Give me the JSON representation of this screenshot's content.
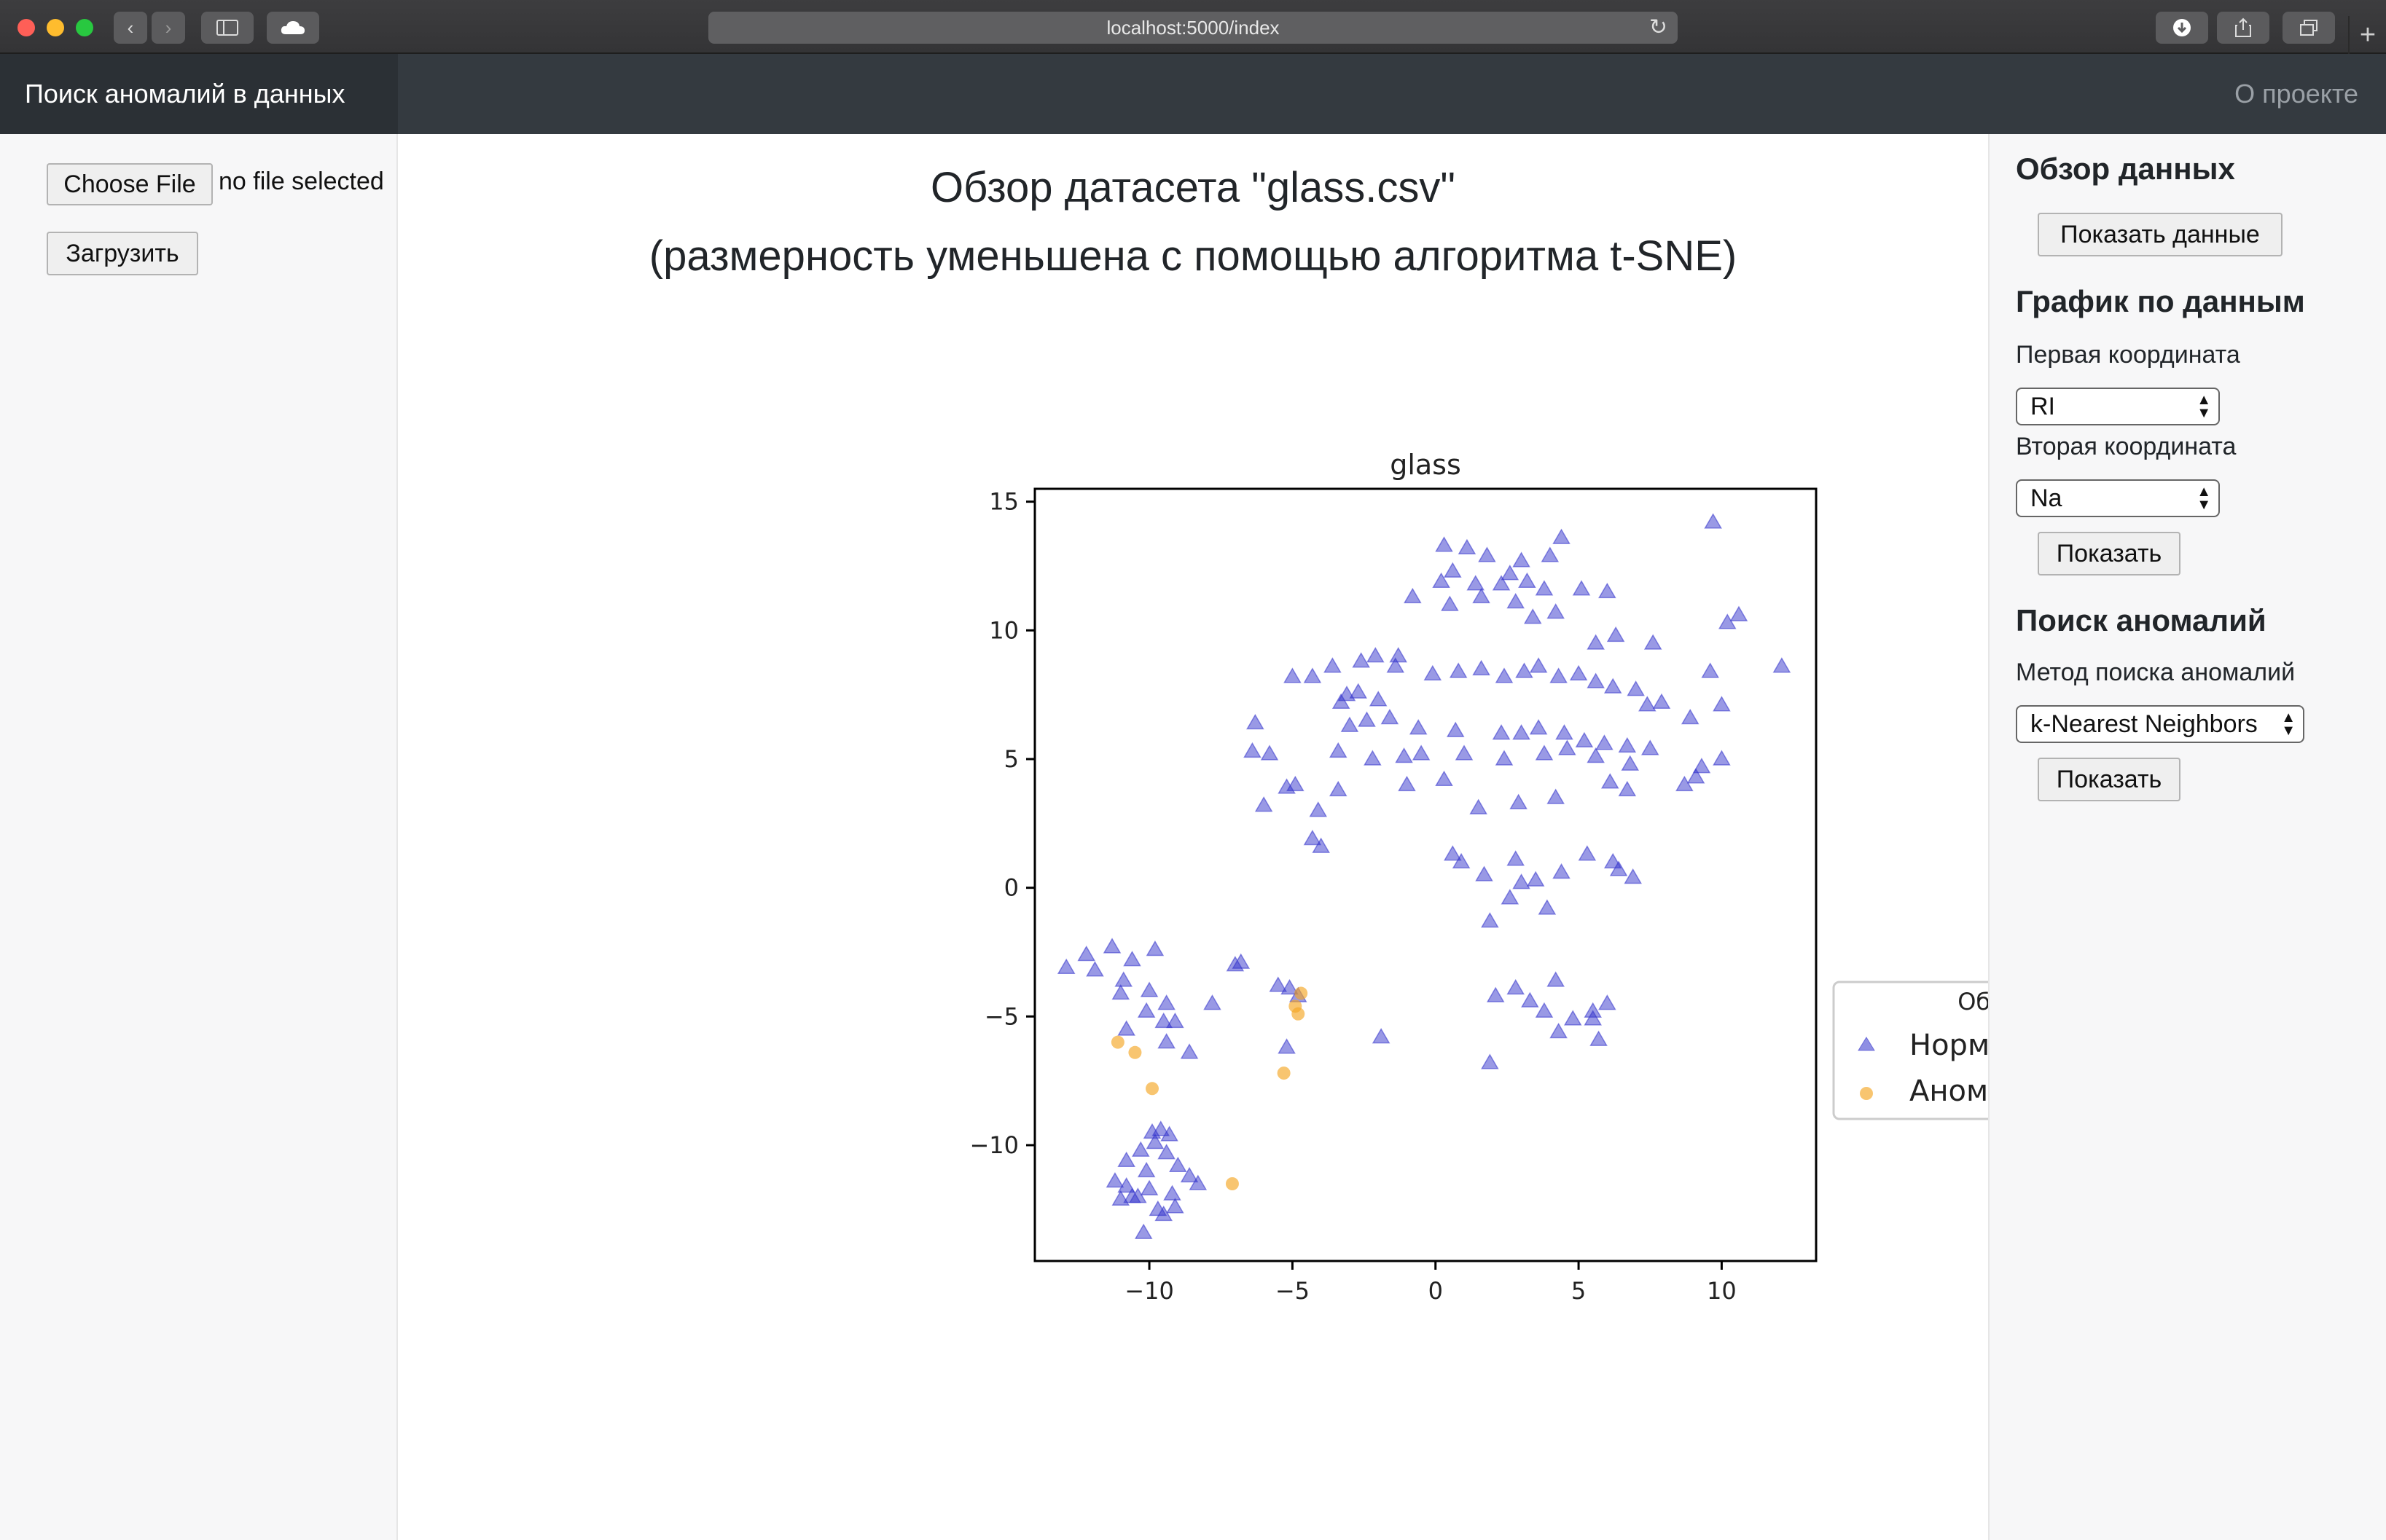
{
  "browser": {
    "url": "localhost:5000/index"
  },
  "navbar": {
    "brand": "Поиск аномалий в данных",
    "about": "О проекте"
  },
  "upload": {
    "choose_label": "Choose File",
    "no_file": "no file selected",
    "submit_label": "Загрузить"
  },
  "main": {
    "title_line1": "Обзор датасета \"glass.csv\"",
    "title_line2": "(размерность уменьшена с помощью алгоритма t-SNE)"
  },
  "sidebar": {
    "overview_heading": "Обзор данных",
    "show_data_button": "Показать данные",
    "chart_heading": "График по данным",
    "first_coord_label": "Первая координата",
    "first_coord_value": "RI",
    "second_coord_label": "Вторая координата",
    "second_coord_value": "Na",
    "show_button": "Показать",
    "anomaly_heading": "Поиск аномалий",
    "method_label": "Метод поиска аномалий",
    "method_value": "k-Nearest Neighbors",
    "show_button_2": "Показать"
  },
  "colors": {
    "normal": "#3333cc",
    "anomaly": "#f5a623",
    "navbar": "#343a40"
  },
  "chart_data": {
    "type": "scatter",
    "title": "glass",
    "xlim": [
      -14,
      13.3
    ],
    "ylim": [
      -14.5,
      15.5
    ],
    "xticks": [
      -10,
      -5,
      0,
      5,
      10
    ],
    "yticks": [
      15,
      10,
      5,
      0,
      -5,
      -10
    ],
    "xtick_labels": [
      "−10",
      "−5",
      "0",
      "5",
      "10"
    ],
    "ytick_labels": [
      "15",
      "10",
      "5",
      "0",
      "−5",
      "−10"
    ],
    "legend": {
      "title": "Обозначения",
      "placement": "outside-right"
    },
    "series": [
      {
        "name": "Нормальные данные",
        "marker": "triangle",
        "x": [
          0.3,
          1.1,
          1.8,
          3.0,
          4.4,
          4.0,
          0.2,
          0.6,
          1.4,
          2.3,
          2.6,
          3.2,
          3.8,
          5.1,
          6.0,
          -0.8,
          0.5,
          1.6,
          2.8,
          3.4,
          4.2,
          5.6,
          6.3,
          7.6,
          9.7,
          10.2,
          10.6,
          12.1,
          9.6,
          -1.3,
          -2.1,
          -2.6,
          -3.6,
          -4.3,
          -5.0,
          -6.3,
          -3.1,
          -3.3,
          -2.7,
          -2.0,
          -1.4,
          -0.1,
          0.8,
          1.6,
          2.4,
          3.1,
          3.6,
          4.3,
          5.0,
          5.6,
          6.2,
          7.0,
          7.4,
          7.9,
          8.9,
          10.0,
          -3.0,
          -2.4,
          -1.6,
          -0.6,
          0.7,
          2.3,
          3.0,
          3.6,
          4.5,
          5.2,
          5.9,
          6.7,
          7.5,
          9.3,
          10.0,
          -6.4,
          -5.8,
          -4.9,
          -3.4,
          -2.2,
          -1.1,
          -0.5,
          1.0,
          2.4,
          3.8,
          4.6,
          5.6,
          6.8,
          -6.0,
          -5.2,
          -4.1,
          -3.4,
          -1.0,
          0.3,
          1.5,
          2.9,
          4.2,
          6.1,
          6.7,
          8.7,
          9.1,
          -4.3,
          -4.0,
          0.6,
          0.9,
          1.7,
          2.8,
          3.0,
          3.5,
          4.4,
          5.3,
          6.2,
          6.4,
          6.9,
          3.9,
          2.6,
          1.9,
          2.1,
          2.8,
          3.3,
          3.8,
          4.2,
          4.8,
          5.5,
          6.0,
          5.7,
          5.5,
          4.3,
          -12.9,
          -12.2,
          -11.9,
          -11.3,
          -10.6,
          -9.8,
          -10.9,
          -11.0,
          -10.0,
          -9.4,
          -9.4,
          -9.1,
          -7.8,
          -7.0,
          -6.8,
          -5.5,
          -5.1,
          -4.8,
          -10.8,
          -10.1,
          -9.5,
          -8.6,
          -5.2,
          -1.9,
          1.9,
          -9.9,
          -9.6,
          -9.3,
          -10.3,
          -10.8,
          -9.8,
          -9.4,
          -9.0,
          -8.6,
          -8.3,
          -10.1,
          -10.8,
          -11.2,
          -10.6,
          -10.0,
          -9.2,
          -11.0,
          -10.4,
          -9.7,
          -9.1,
          -10.2,
          -9.5
        ],
        "y": [
          13.3,
          13.2,
          12.9,
          12.7,
          13.6,
          12.9,
          11.9,
          12.3,
          11.8,
          11.8,
          12.2,
          11.9,
          11.6,
          11.6,
          11.5,
          11.3,
          11.0,
          11.3,
          11.1,
          10.5,
          10.7,
          9.5,
          9.8,
          9.5,
          14.2,
          10.3,
          10.6,
          8.6,
          8.4,
          9.0,
          9.0,
          8.8,
          8.6,
          8.2,
          8.2,
          6.4,
          7.5,
          7.2,
          7.6,
          7.3,
          8.6,
          8.3,
          8.4,
          8.5,
          8.2,
          8.4,
          8.6,
          8.2,
          8.3,
          8.0,
          7.8,
          7.7,
          7.1,
          7.2,
          6.6,
          7.1,
          6.3,
          6.5,
          6.6,
          6.2,
          6.1,
          6.0,
          6.0,
          6.2,
          6.0,
          5.7,
          5.6,
          5.5,
          5.4,
          4.7,
          5.0,
          5.3,
          5.2,
          4.0,
          5.3,
          5.0,
          5.1,
          5.2,
          5.2,
          5.0,
          5.2,
          5.4,
          5.1,
          4.8,
          3.2,
          3.9,
          3.0,
          3.8,
          4.0,
          4.2,
          3.1,
          3.3,
          3.5,
          4.1,
          3.8,
          4.0,
          4.3,
          1.9,
          1.6,
          1.3,
          1.0,
          0.5,
          1.1,
          0.2,
          0.3,
          0.6,
          1.3,
          1.0,
          0.7,
          0.4,
          -0.8,
          -0.4,
          -1.3,
          -4.2,
          -3.9,
          -4.4,
          -4.8,
          -3.6,
          -5.1,
          -4.8,
          -4.5,
          -5.9,
          -5.1,
          -5.6,
          -3.1,
          -2.6,
          -3.2,
          -2.3,
          -2.8,
          -2.4,
          -3.6,
          -4.1,
          -4.0,
          -4.5,
          -6.0,
          -5.2,
          -4.5,
          -3.0,
          -2.9,
          -3.8,
          -3.9,
          -4.2,
          -5.5,
          -4.8,
          -5.2,
          -6.4,
          -6.2,
          -5.8,
          -6.8,
          -9.5,
          -9.4,
          -9.6,
          -10.2,
          -10.6,
          -9.9,
          -10.3,
          -10.8,
          -11.2,
          -11.5,
          -11.0,
          -11.6,
          -11.4,
          -12.0,
          -11.7,
          -11.9,
          -12.1,
          -12.0,
          -12.5,
          -12.4,
          -13.4,
          -12.7
        ]
      },
      {
        "name": "Аномальные данные",
        "marker": "circle",
        "x": [
          -4.7,
          -4.9,
          -4.8,
          -11.1,
          -10.5,
          -9.9,
          -5.3,
          -7.1
        ],
        "y": [
          -4.1,
          -4.6,
          -4.9,
          -6.0,
          -6.4,
          -7.8,
          -7.2,
          -11.5
        ]
      }
    ]
  }
}
